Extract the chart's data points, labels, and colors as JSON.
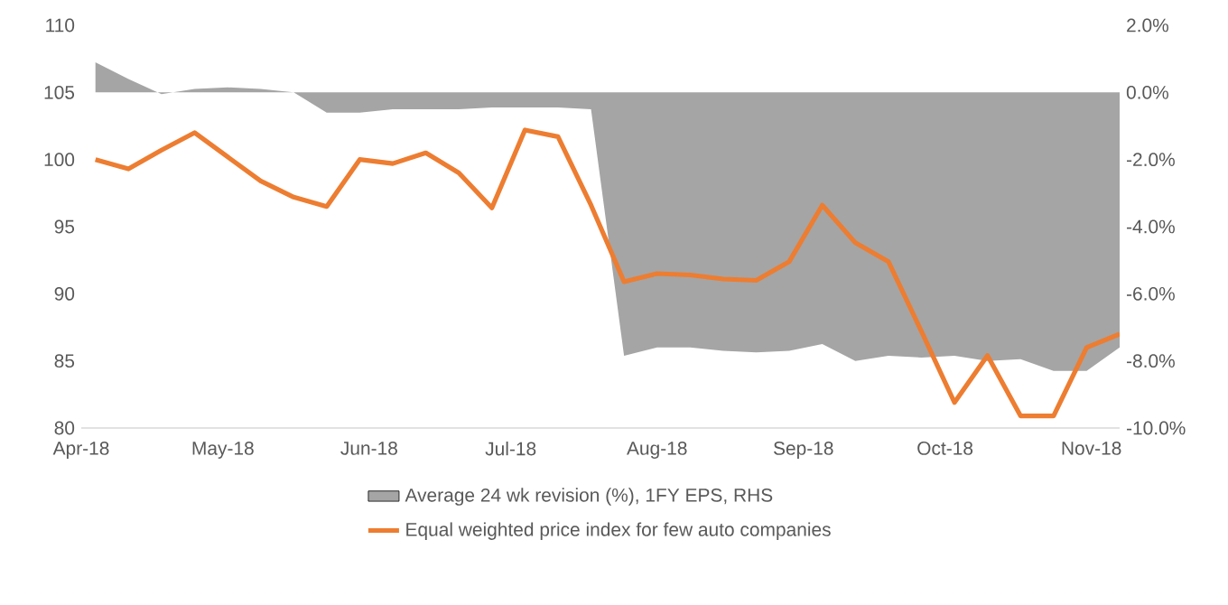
{
  "chart_data": {
    "type": "line",
    "x": [
      "2018-04-04",
      "2018-04-11",
      "2018-04-18",
      "2018-04-25",
      "2018-05-02",
      "2018-05-09",
      "2018-05-16",
      "2018-05-23",
      "2018-05-30",
      "2018-06-06",
      "2018-06-13",
      "2018-06-20",
      "2018-06-27",
      "2018-07-04",
      "2018-07-11",
      "2018-07-18",
      "2018-07-25",
      "2018-08-01",
      "2018-08-08",
      "2018-08-15",
      "2018-08-22",
      "2018-08-29",
      "2018-09-05",
      "2018-09-12",
      "2018-09-19",
      "2018-09-26",
      "2018-10-03",
      "2018-10-10",
      "2018-10-17",
      "2018-10-24",
      "2018-10-31",
      "2018-11-07"
    ],
    "series": [
      {
        "name": "Average 24 wk revision (%), 1FY EPS, RHS",
        "type": "area",
        "axis": "y2",
        "color": "#a5a5a5",
        "values": [
          0.9,
          0.4,
          -0.05,
          0.1,
          0.15,
          0.1,
          0.0,
          -0.6,
          -0.6,
          -0.5,
          -0.5,
          -0.5,
          -0.45,
          -0.45,
          -0.45,
          -0.5,
          -7.85,
          -7.6,
          -7.6,
          -7.7,
          -7.75,
          -7.7,
          -7.5,
          -8.0,
          -7.85,
          -7.9,
          -7.85,
          -8.0,
          -7.95,
          -8.3,
          -8.3,
          -7.6
        ]
      },
      {
        "name": "Equal weighted price index for few auto companies",
        "color": "#ed7d31",
        "values": [
          100.0,
          99.3,
          100.7,
          102.0,
          100.2,
          98.4,
          97.2,
          96.5,
          100.0,
          99.7,
          100.5,
          99.0,
          96.4,
          102.2,
          101.7,
          96.6,
          90.9,
          91.5,
          91.4,
          91.1,
          91.0,
          92.4,
          96.6,
          93.8,
          92.4,
          87.2,
          81.9,
          85.4,
          80.9,
          80.9,
          86.0,
          87.0
        ]
      }
    ],
    "xlim": [
      "2018-04-01",
      "2018-11-07"
    ],
    "xticks": [
      {
        "value": "2018-04-01",
        "label": "Apr-18"
      },
      {
        "value": "2018-05-01",
        "label": "May-18"
      },
      {
        "value": "2018-06-01",
        "label": "Jun-18"
      },
      {
        "value": "2018-07-01",
        "label": "Jul-18"
      },
      {
        "value": "2018-08-01",
        "label": "Aug-18"
      },
      {
        "value": "2018-09-01",
        "label": "Sep-18"
      },
      {
        "value": "2018-10-01",
        "label": "Oct-18"
      },
      {
        "value": "2018-11-01",
        "label": "Nov-18"
      }
    ],
    "ylim": [
      80,
      110
    ],
    "yticks": [
      80,
      85,
      90,
      95,
      100,
      105,
      110
    ],
    "y2lim": [
      -10,
      2
    ],
    "y2ticks": [
      {
        "value": -10,
        "label": "-10.0%"
      },
      {
        "value": -8,
        "label": "-8.0%"
      },
      {
        "value": -6,
        "label": "-6.0%"
      },
      {
        "value": -4,
        "label": "-4.0%"
      },
      {
        "value": -2,
        "label": "-2.0%"
      },
      {
        "value": 0,
        "label": "0.0%"
      },
      {
        "value": 2,
        "label": "2.0%"
      }
    ],
    "legend": "bottom"
  }
}
